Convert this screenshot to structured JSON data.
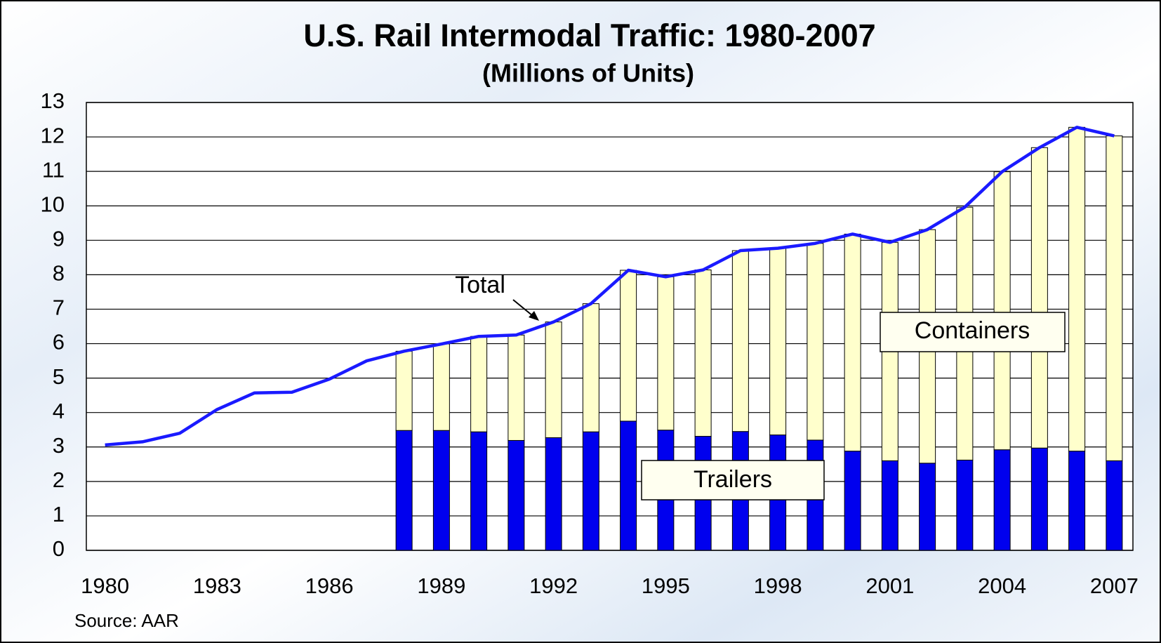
{
  "chart_data": {
    "type": "bar",
    "title": "U.S. Rail Intermodal Traffic: 1980-2007",
    "subtitle": "(Millions of Units)",
    "source": "Source: AAR",
    "categories": [
      "1980",
      null,
      null,
      "1983",
      null,
      null,
      "1986",
      null,
      null,
      "1989",
      null,
      null,
      "1992",
      null,
      null,
      "1995",
      null,
      null,
      "1998",
      null,
      null,
      "2001",
      null,
      null,
      "2004",
      null,
      null,
      "2007"
    ],
    "series": [
      {
        "name": "Trailers",
        "type": "bar",
        "color": "#0000ee",
        "values": [
          null,
          null,
          null,
          null,
          null,
          null,
          null,
          null,
          3.48,
          3.48,
          3.44,
          3.19,
          3.27,
          3.44,
          3.75,
          3.49,
          3.31,
          3.45,
          3.35,
          3.2,
          2.88,
          2.6,
          2.53,
          2.62,
          2.92,
          2.97,
          2.88,
          2.6
        ]
      },
      {
        "name": "Containers",
        "type": "bar",
        "color": "#ffffcc",
        "values": [
          null,
          null,
          null,
          null,
          null,
          null,
          null,
          null,
          2.3,
          2.51,
          2.77,
          3.06,
          3.36,
          3.72,
          4.38,
          4.45,
          4.83,
          5.25,
          5.42,
          5.71,
          6.3,
          6.34,
          6.78,
          7.34,
          8.07,
          8.72,
          9.4,
          9.43
        ]
      },
      {
        "name": "Total",
        "type": "line",
        "color": "#1a1aff",
        "values": [
          3.06,
          3.15,
          3.4,
          4.09,
          4.57,
          4.59,
          4.97,
          5.5,
          5.78,
          5.99,
          6.21,
          6.25,
          6.63,
          7.16,
          8.13,
          7.94,
          8.14,
          8.7,
          8.77,
          8.91,
          9.18,
          8.94,
          9.31,
          9.96,
          10.99,
          11.69,
          12.28,
          12.03
        ]
      }
    ],
    "stacked": true,
    "ylim": [
      0,
      13
    ],
    "yticks": [
      0,
      1,
      2,
      3,
      4,
      5,
      6,
      7,
      8,
      9,
      10,
      11,
      12,
      13
    ],
    "grid": true
  }
}
